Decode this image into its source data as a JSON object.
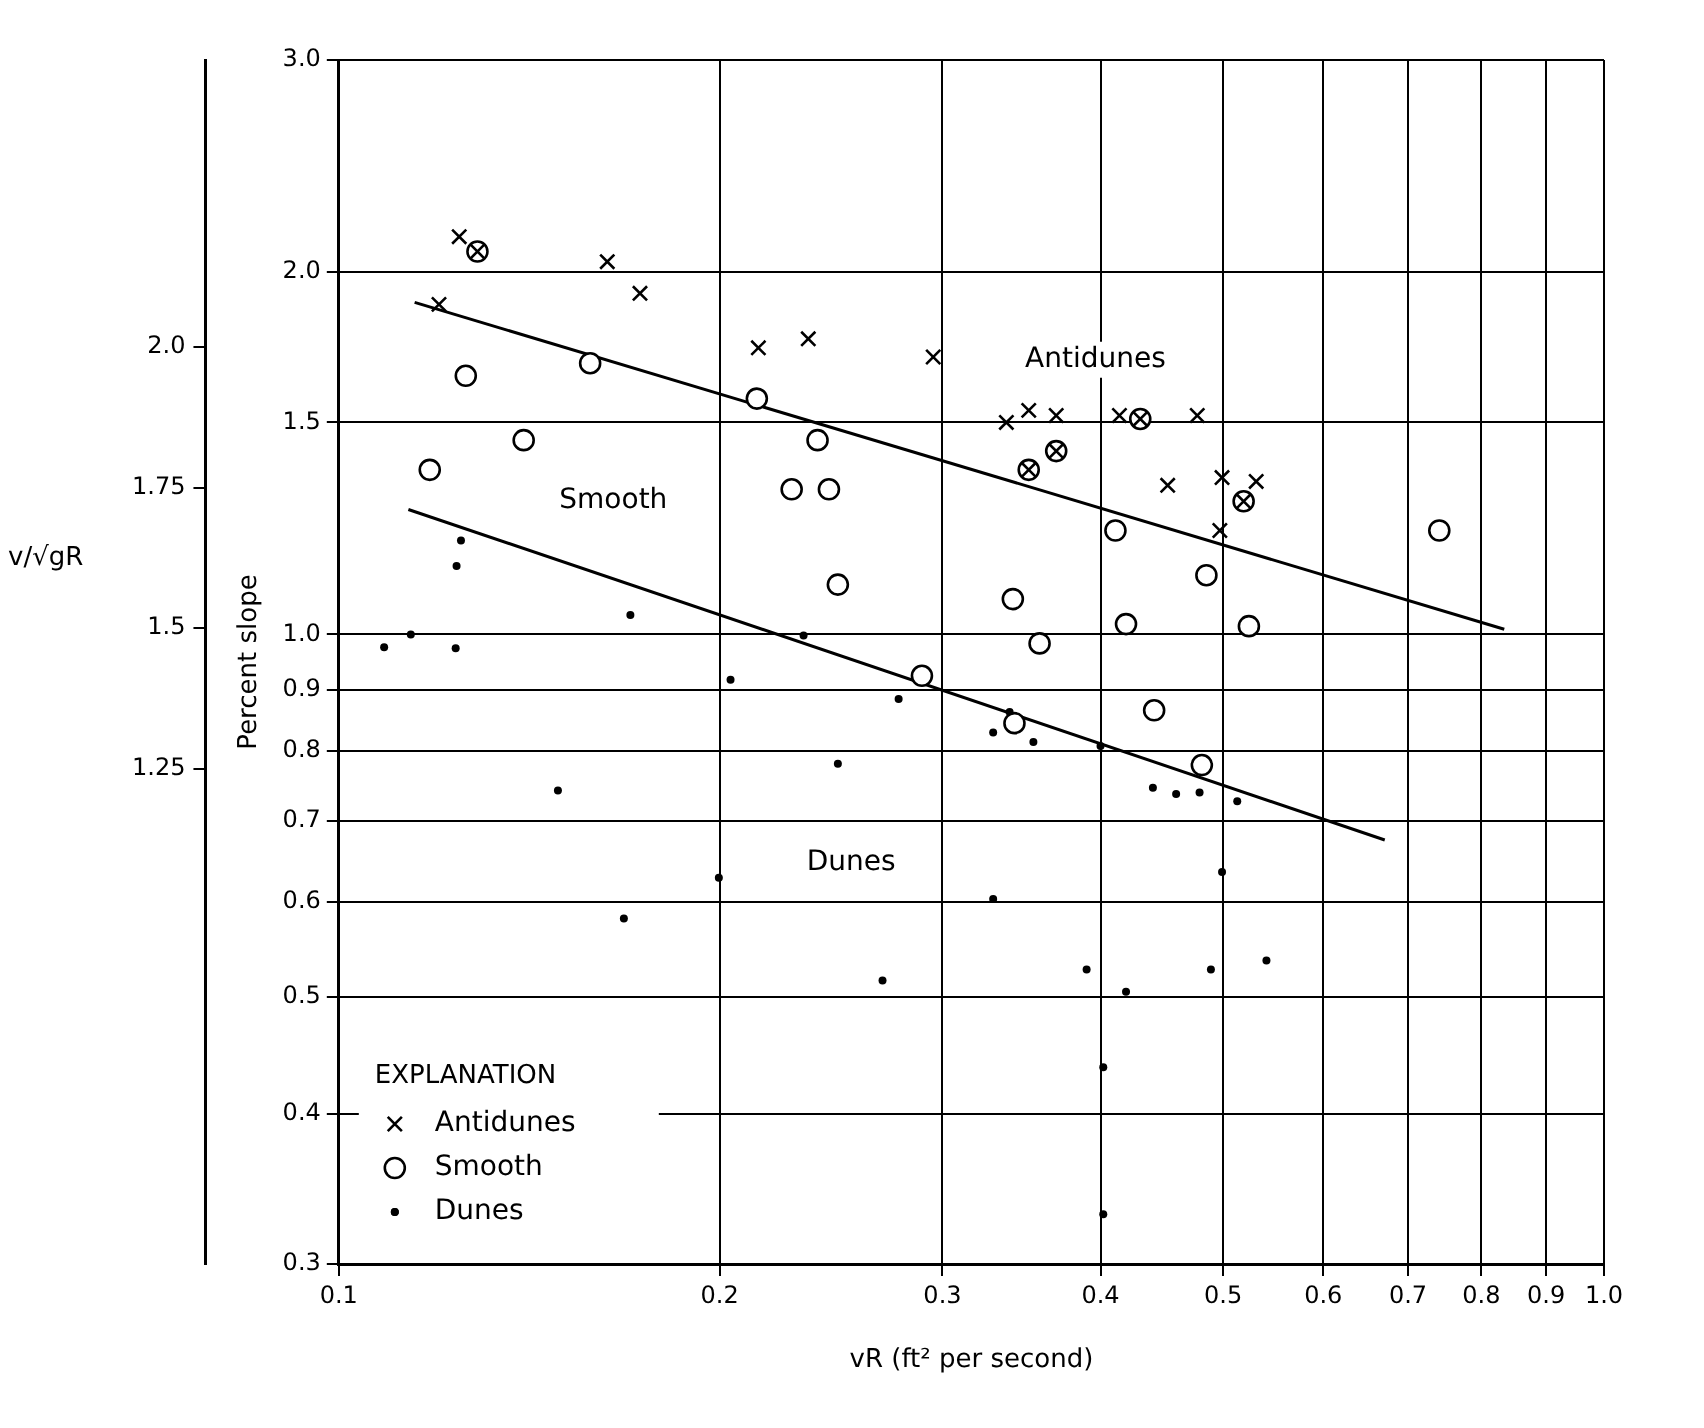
{
  "chart_data": {
    "type": "scatter",
    "xlabel": "vR (ft² per second)",
    "ylabel": "Percent slope",
    "y2label": "v/√gR",
    "legend_title": "EXPLANATION",
    "legend": "bottom left",
    "log": "xy",
    "grid": true,
    "xlim": [
      0.1,
      1.0
    ],
    "xticks": [
      0.1,
      0.2,
      0.3,
      0.4,
      0.5,
      0.6,
      0.7,
      0.8,
      0.9,
      {
        "value": 1,
        "label": "1.0"
      }
    ],
    "ylim": [
      0.3,
      3.0
    ],
    "yticks": [
      0.3,
      0.4,
      0.5,
      0.6,
      0.7,
      0.8,
      0.9,
      {
        "value": 1,
        "label": "1.0"
      },
      1.5,
      {
        "value": 2,
        "label": "2.0"
      },
      {
        "value": 3,
        "label": "3.0"
      }
    ],
    "y2lim": [
      0.37,
      2.51
    ],
    "y2ticks": [
      1.25,
      1.5,
      1.75,
      {
        "value": 2,
        "label": "2.0"
      }
    ],
    "annotations": [
      "Antidunes",
      "Smooth",
      "Dunes"
    ],
    "series": [
      {
        "name": "Antidunes",
        "marker": "cross",
        "color": "#000000",
        "x": [
          0.1245,
          0.12,
          0.163,
          0.173,
          0.2146,
          0.235,
          0.1287,
          0.295,
          0.337,
          0.351,
          0.369,
          0.414,
          0.43,
          0.477,
          0.369,
          0.351,
          0.452,
          0.499,
          0.531,
          0.519,
          0.497
        ],
        "values": [
          2.14,
          1.88,
          2.04,
          1.92,
          1.73,
          1.76,
          2.08,
          1.7,
          1.5,
          1.535,
          1.52,
          1.52,
          1.51,
          1.52,
          1.42,
          1.37,
          1.33,
          1.35,
          1.34,
          1.29,
          1.22
        ]
      },
      {
        "name": "Smooth",
        "marker": "circle",
        "color": "#000000",
        "x": [
          0.126,
          0.158,
          0.118,
          0.14,
          0.214,
          0.239,
          0.228,
          0.244,
          0.248,
          0.289,
          0.411,
          0.741,
          0.485,
          0.341,
          0.419,
          0.524,
          0.358,
          0.441,
          0.342,
          0.481,
          0.1287,
          0.43,
          0.369,
          0.351,
          0.519
        ],
        "values": [
          1.64,
          1.68,
          1.37,
          1.45,
          1.57,
          1.45,
          1.32,
          1.32,
          1.1,
          0.924,
          1.22,
          1.22,
          1.12,
          1.07,
          1.02,
          1.016,
          0.983,
          0.865,
          0.844,
          0.779,
          2.08,
          1.51,
          1.42,
          1.37,
          1.29
        ]
      },
      {
        "name": "Dunes",
        "color": "#000000",
        "x": [
          0.1086,
          0.114,
          0.1237,
          0.17,
          0.149,
          0.168,
          0.1997,
          0.204,
          0.233,
          0.248,
          0.277,
          0.269,
          0.1249,
          0.1239,
          0.329,
          0.339,
          0.354,
          0.4,
          0.44,
          0.459,
          0.479,
          0.513,
          0.499,
          0.329,
          0.39,
          0.419,
          0.489,
          0.541,
          0.402,
          0.402
        ],
        "values": [
          0.976,
          1.0,
          0.974,
          1.038,
          0.742,
          0.581,
          0.628,
          0.917,
          0.998,
          0.781,
          0.884,
          0.516,
          1.197,
          1.14,
          0.829,
          0.862,
          0.814,
          0.808,
          0.746,
          0.737,
          0.739,
          0.727,
          0.635,
          0.603,
          0.527,
          0.505,
          0.527,
          0.536,
          0.437,
          0.33
        ]
      },
      {
        "type": "line",
        "color": "#000000",
        "x": [
          0.1148,
          0.834
        ],
        "values": [
          1.887,
          1.01
        ]
      },
      {
        "type": "line",
        "color": "#000000",
        "x": [
          0.1135,
          0.671
        ],
        "values": [
          1.27,
          0.675
        ]
      }
    ]
  }
}
